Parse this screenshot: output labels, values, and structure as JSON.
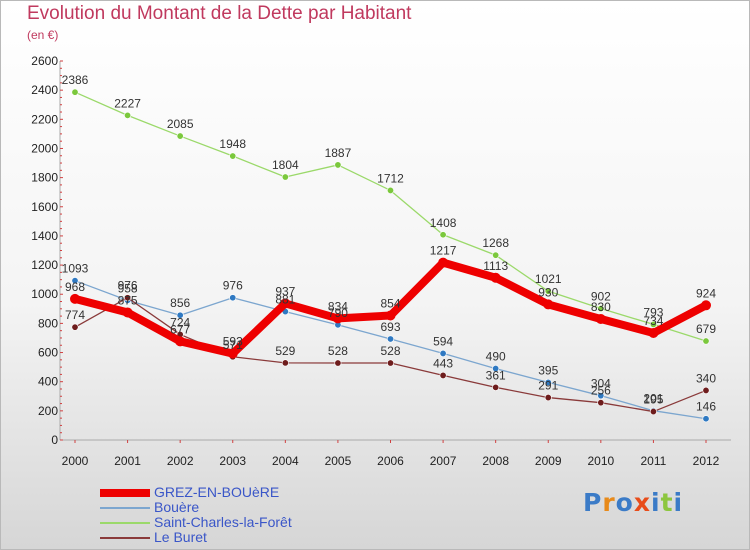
{
  "header": {
    "title": "Evolution du Montant de la Dette par Habitant",
    "subtitle": "(en €)"
  },
  "logo": {
    "text": "Proxiti",
    "letter_colors": [
      "#3b7bc7",
      "#e88a1a",
      "#3b7bc7",
      "#e84c1a",
      "#3b7bc7",
      "#8dc63f",
      "#3b7bc7"
    ]
  },
  "chart_data": {
    "type": "line",
    "title": "Evolution du Montant de la Dette par Habitant",
    "subtitle": "(en €)",
    "xlabel": "",
    "ylabel": "",
    "categories": [
      "2000",
      "2001",
      "2002",
      "2003",
      "2004",
      "2005",
      "2006",
      "2007",
      "2008",
      "2009",
      "2010",
      "2011",
      "2012"
    ],
    "ylim": [
      0,
      2600
    ],
    "yticks": [
      0,
      200,
      400,
      600,
      800,
      1000,
      1200,
      1400,
      1600,
      1800,
      2000,
      2200,
      2400,
      2600
    ],
    "grid": false,
    "legend_position": "bottom-left",
    "series": [
      {
        "name": "GREZ-EN-BOUèRE",
        "color": "#ee0000",
        "values": [
          968,
          875,
          677,
          593,
          937,
          834,
          854,
          1217,
          1113,
          930,
          830,
          734,
          924
        ],
        "labels": [
          "968",
          "875",
          "677",
          "593",
          "937",
          "834",
          "854",
          "1217",
          "1113",
          "930",
          "830",
          "734",
          "924"
        ]
      },
      {
        "name": "Bouère",
        "color": "#7ca6cf",
        "marker": "#2f79c2",
        "values": [
          1093,
          958,
          856,
          976,
          881,
          790,
          693,
          594,
          490,
          395,
          304,
          201,
          146
        ],
        "labels": [
          "1093",
          "958",
          "856",
          "976",
          "881",
          "790",
          "693",
          "594",
          "490",
          "395",
          "304",
          "201",
          "146"
        ]
      },
      {
        "name": "Saint-Charles-la-Forêt",
        "color": "#9bd96a",
        "marker": "#7bc83c",
        "values": [
          2386,
          2227,
          2085,
          1948,
          1804,
          1887,
          1712,
          1408,
          1268,
          1021,
          902,
          793,
          679
        ],
        "labels": [
          "2386",
          "2227",
          "2085",
          "1948",
          "1804",
          "1887",
          "1712",
          "1408",
          "1268",
          "1021",
          "902",
          "793",
          "679"
        ]
      },
      {
        "name": "Le Buret",
        "color": "#8a3a3a",
        "marker": "#6e1c1c",
        "values": [
          774,
          976,
          724,
          571,
          529,
          528,
          528,
          443,
          361,
          291,
          256,
          195,
          340
        ],
        "labels": [
          "774",
          "976",
          "724",
          "571",
          "529",
          "528",
          "528",
          "443",
          "361",
          "291",
          "256",
          "195",
          "340"
        ]
      }
    ]
  }
}
